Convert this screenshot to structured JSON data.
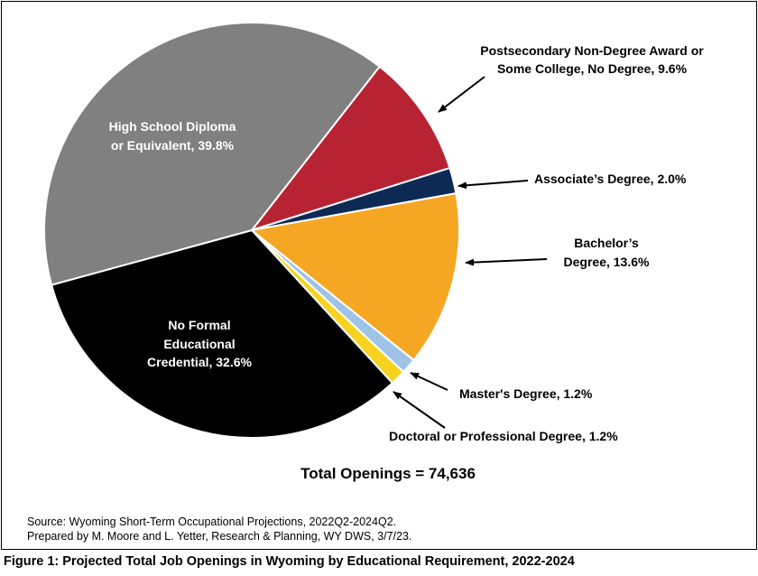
{
  "chart_data": {
    "type": "pie",
    "slices": [
      {
        "label": "Postsecondary Non-Degree Award or Some College, No Degree",
        "value": 9.6,
        "label_text": [
          "Postsecondary Non-Degree Award or",
          "Some College, No Degree, 9.6%"
        ],
        "color": "#b82333",
        "label_style": "callout"
      },
      {
        "label": "Associate's Degree",
        "value": 2.0,
        "label_text": [
          "Associate’s Degree, 2.0%"
        ],
        "color": "#0c2a55",
        "label_style": "callout"
      },
      {
        "label": "Bachelor's Degree",
        "value": 13.6,
        "label_text": [
          "Bachelor’s",
          "Degree, 13.6%"
        ],
        "color": "#f5a623",
        "label_style": "callout"
      },
      {
        "label": "Master's Degree",
        "value": 1.2,
        "label_text": [
          "Master's Degree, 1.2%"
        ],
        "color": "#9ec3e6",
        "label_style": "callout"
      },
      {
        "label": "Doctoral or Professional Degree",
        "value": 1.2,
        "label_text": [
          "Doctoral or Professional Degree, 1.2%"
        ],
        "color": "#f7d21e",
        "label_style": "callout"
      },
      {
        "label": "No Formal Educational Credential",
        "value": 32.6,
        "label_text": [
          "No Formal",
          "Educational",
          "Credential, 32.6%"
        ],
        "color": "#000000",
        "label_style": "inside"
      },
      {
        "label": "High School Diploma or Equivalent",
        "value": 39.8,
        "label_text": [
          "High School Diploma",
          "or Equivalent, 39.8%"
        ],
        "color": "#808080",
        "label_style": "inside"
      }
    ],
    "units": "%"
  },
  "total_label": "Total Openings = 74,636",
  "source": {
    "line1": "Source: Wyoming Short-Term Occupational Projections, 2022Q2-2024Q2.",
    "line2": "Prepared by M. Moore and L. Yetter, Research & Planning, WY DWS, 3/7/23."
  },
  "caption": "Figure 1: Projected Total Job Openings in Wyoming by Educational Requirement, 2022-2024"
}
